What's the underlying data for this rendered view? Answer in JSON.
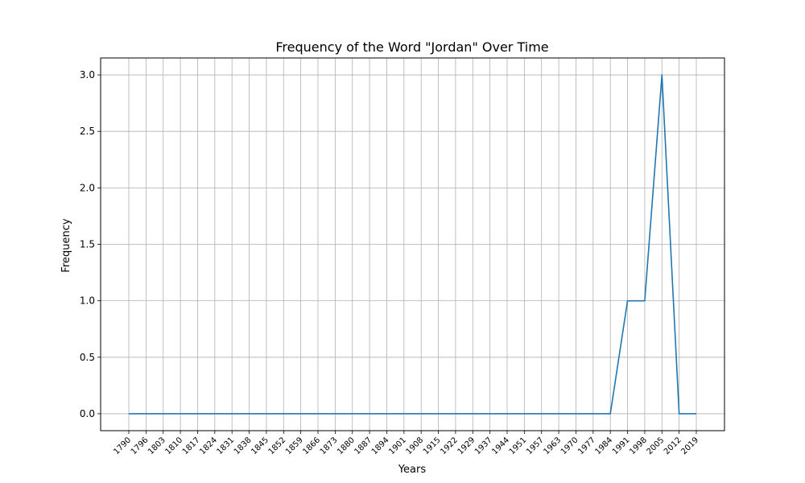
{
  "chart_data": {
    "type": "line",
    "title": "Frequency of the Word \"Jordan\" Over Time",
    "xlabel": "Years",
    "ylabel": "Frequency",
    "x": [
      1790,
      1796,
      1803,
      1810,
      1817,
      1824,
      1831,
      1838,
      1845,
      1852,
      1859,
      1866,
      1873,
      1880,
      1887,
      1894,
      1901,
      1908,
      1915,
      1922,
      1929,
      1937,
      1944,
      1951,
      1957,
      1963,
      1970,
      1977,
      1984,
      1991,
      1998,
      2005,
      2012,
      2019
    ],
    "x_tick_labels": [
      "1790",
      "1796",
      "1803",
      "1810",
      "1817",
      "1824",
      "1831",
      "1838",
      "1845",
      "1852",
      "1859",
      "1866",
      "1873",
      "1880",
      "1887",
      "1894",
      "1901",
      "1908",
      "1915",
      "1922",
      "1929",
      "1937",
      "1944",
      "1951",
      "1957",
      "1963",
      "1970",
      "1977",
      "1984",
      "1991",
      "1998",
      "2005",
      "2012",
      "2019"
    ],
    "series": [
      {
        "values": [
          0,
          0,
          0,
          0,
          0,
          0,
          0,
          0,
          0,
          0,
          0,
          0,
          0,
          0,
          0,
          0,
          0,
          0,
          0,
          0,
          0,
          0,
          0,
          0,
          0,
          0,
          0,
          0,
          0,
          1,
          1,
          3,
          0,
          0
        ],
        "color": "#1f77b4"
      }
    ],
    "y_ticks": [
      "0.0",
      "0.5",
      "1.0",
      "1.5",
      "2.0",
      "2.5",
      "3.0"
    ],
    "ylim": [
      -0.15,
      3.15
    ],
    "grid": true,
    "legend": "none"
  }
}
